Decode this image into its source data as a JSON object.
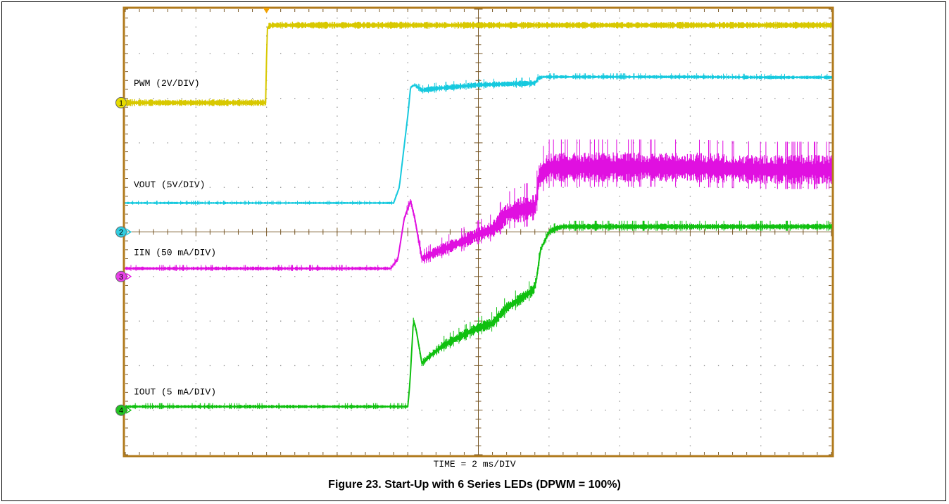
{
  "figure": {
    "caption": "Figure 23. Start-Up with 6 Series LEDs (DPWM = 100%)",
    "time_label": "TIME = 2 ms/DIV"
  },
  "chart_data": {
    "type": "line",
    "title": "Figure 23. Start-Up with 6 Series LEDs (DPWM = 100%)",
    "xlabel": "TIME = 2 ms/DIV",
    "x_divisions": 10,
    "y_divisions": 10,
    "xlim_div": [
      0,
      10
    ],
    "ylim_div": [
      -5,
      5
    ],
    "grid": true,
    "trigger_marker_div": 2.0,
    "series": [
      {
        "name": "PWM (2V/DIV)",
        "channel": "1",
        "color": "#d8c800",
        "marker_color": "#e6dc00",
        "ref_level_div": 2.9,
        "label_level_div": 3.28,
        "x": [
          0,
          1.99,
          2.0,
          2.01,
          2.03,
          2.08,
          10
        ],
        "y": [
          2.9,
          2.9,
          3.9,
          4.55,
          4.62,
          4.64,
          4.64
        ]
      },
      {
        "name": "VOUT (5V/DIV)",
        "channel": "2",
        "color": "#16c9de",
        "marker_color": "#30cde0",
        "ref_level_div": 0.0,
        "label_level_div": 1.0,
        "x": [
          0,
          3.8,
          3.88,
          3.94,
          4.0,
          4.04,
          4.1,
          4.2,
          4.4,
          5.0,
          5.8,
          5.85,
          5.92,
          6.2,
          7.0,
          8.0,
          9.0,
          10
        ],
        "y": [
          0.65,
          0.65,
          1.0,
          1.8,
          2.6,
          3.25,
          3.3,
          3.18,
          3.22,
          3.3,
          3.34,
          3.45,
          3.48,
          3.48,
          3.48,
          3.48,
          3.47,
          3.47
        ],
        "noise_div": [
          0.02,
          0.02,
          0.02,
          0.02,
          0.02,
          0.02,
          0.03,
          0.04,
          0.05,
          0.05,
          0.05,
          0.04,
          0.03,
          0.03,
          0.03,
          0.03,
          0.03,
          0.03
        ]
      },
      {
        "name": "IIN (50 mA/DIV)",
        "channel": "3",
        "color": "#e010e0",
        "marker_color": "#e840e8",
        "ref_level_div": -1.0,
        "label_level_div": -0.52,
        "x": [
          0,
          3.76,
          3.86,
          3.95,
          4.04,
          4.1,
          4.2,
          4.4,
          4.8,
          5.0,
          5.2,
          5.4,
          5.6,
          5.8,
          5.82,
          5.86,
          6.0,
          6.4,
          7.0,
          8.0,
          9.0,
          10
        ],
        "y": [
          -0.82,
          -0.82,
          -0.6,
          0.3,
          0.7,
          0.3,
          -0.6,
          -0.45,
          -0.2,
          -0.05,
          0.05,
          0.4,
          0.5,
          0.55,
          0.7,
          1.25,
          1.45,
          1.45,
          1.45,
          1.45,
          1.4,
          1.4
        ],
        "noise_div": [
          0.03,
          0.03,
          0.04,
          0.04,
          0.05,
          0.06,
          0.07,
          0.1,
          0.12,
          0.12,
          0.14,
          0.18,
          0.22,
          0.22,
          0.2,
          0.22,
          0.24,
          0.24,
          0.24,
          0.24,
          0.24,
          0.24
        ]
      },
      {
        "name": "IOUT (5 mA/DIV)",
        "channel": "4",
        "color": "#10c010",
        "marker_color": "#22c422",
        "ref_level_div": -4.0,
        "label_level_div": -3.65,
        "x": [
          0,
          4.0,
          4.03,
          4.08,
          4.12,
          4.2,
          4.3,
          4.5,
          4.8,
          5.0,
          5.2,
          5.4,
          5.6,
          5.78,
          5.82,
          5.88,
          6.0,
          6.1,
          6.2,
          6.5,
          7.0,
          8.0,
          9.0,
          10
        ],
        "y": [
          -3.92,
          -3.92,
          -3.4,
          -1.98,
          -2.2,
          -2.95,
          -2.8,
          -2.55,
          -2.3,
          -2.15,
          -2.05,
          -1.7,
          -1.5,
          -1.3,
          -1.1,
          -0.4,
          0.0,
          0.08,
          0.12,
          0.12,
          0.12,
          0.12,
          0.12,
          0.12
        ],
        "noise_div": [
          0.03,
          0.03,
          0.04,
          0.04,
          0.05,
          0.06,
          0.07,
          0.08,
          0.08,
          0.09,
          0.1,
          0.1,
          0.1,
          0.1,
          0.08,
          0.06,
          0.05,
          0.05,
          0.05,
          0.05,
          0.05,
          0.05,
          0.05,
          0.05
        ]
      }
    ]
  }
}
